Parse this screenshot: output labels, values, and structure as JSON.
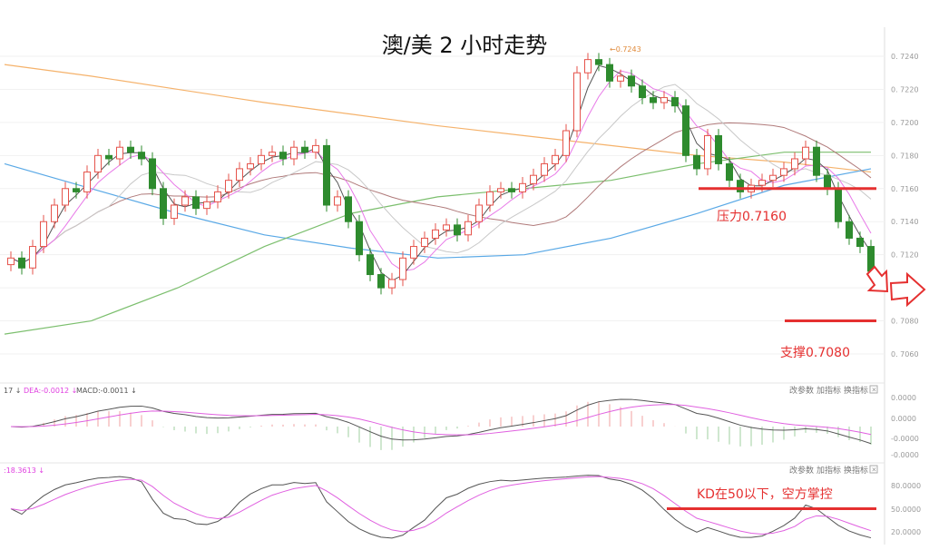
{
  "title": "澳/美 2 小时走势",
  "chart_data": {
    "type": "candlestick",
    "title": "澳/美 2 小时走势",
    "price_axis": {
      "ticks": [
        "0.7240",
        "0.7220",
        "0.7200",
        "0.7180",
        "0.7160",
        "0.7140",
        "0.7120",
        "0.7100",
        "0.7080",
        "0.7060"
      ],
      "range": [
        0.706,
        0.724
      ]
    },
    "high_label": "0.7243",
    "closes": [
      0.7118,
      0.7112,
      0.7125,
      0.714,
      0.715,
      0.716,
      0.7158,
      0.717,
      0.718,
      0.7178,
      0.7185,
      0.7182,
      0.7178,
      0.716,
      0.7142,
      0.715,
      0.7155,
      0.7148,
      0.7152,
      0.7158,
      0.7165,
      0.7172,
      0.7175,
      0.718,
      0.7182,
      0.7178,
      0.7185,
      0.7182,
      0.7186,
      0.715,
      0.7155,
      0.714,
      0.712,
      0.7108,
      0.71,
      0.7105,
      0.7118,
      0.7125,
      0.713,
      0.7135,
      0.7138,
      0.7132,
      0.714,
      0.715,
      0.7158,
      0.716,
      0.7158,
      0.7163,
      0.7168,
      0.7175,
      0.718,
      0.7195,
      0.723,
      0.7238,
      0.7235,
      0.7225,
      0.7228,
      0.7222,
      0.7215,
      0.7212,
      0.7215,
      0.721,
      0.718,
      0.7172,
      0.7192,
      0.7175,
      0.7165,
      0.7158,
      0.7162,
      0.7165,
      0.7168,
      0.7172,
      0.7178,
      0.7185,
      0.7168,
      0.716,
      0.714,
      0.713,
      0.7125,
      0.711
    ],
    "long_mas": [
      {
        "color": "#f5b26b",
        "values": [
          0.7235,
          0.7228,
          0.722,
          0.7212,
          0.7205,
          0.7198,
          0.7192,
          0.7186,
          0.718,
          0.7176,
          0.717
        ]
      },
      {
        "color": "#5aa9e6",
        "values": [
          0.7175,
          0.716,
          0.7145,
          0.7132,
          0.7124,
          0.7118,
          0.712,
          0.713,
          0.7145,
          0.7162,
          0.7172
        ]
      },
      {
        "color": "#7cbf6e",
        "values": [
          0.7072,
          0.708,
          0.71,
          0.7125,
          0.7145,
          0.7155,
          0.716,
          0.7165,
          0.7175,
          0.7182,
          0.7182
        ]
      }
    ],
    "annotations": [
      {
        "label": "压力0.7160",
        "value": 0.716,
        "color": "#e53030"
      },
      {
        "label": "支撑0.7080",
        "value": 0.708,
        "color": "#e53030"
      }
    ],
    "macd": {
      "header": [
        "17",
        "DEA:-0.0012",
        "MACD:-0.0011"
      ],
      "ticks": [
        "0.0000",
        "0.0000",
        "-0.0000",
        "-0.0000"
      ]
    },
    "kd": {
      "header": ":18.3613",
      "ticks": [
        "80.0000",
        "50.0000",
        "20.0000"
      ],
      "annotation": "KD在50以下，空方掌控",
      "level": 50
    }
  },
  "toolbar": [
    "改参数",
    "加指标",
    "换指标"
  ],
  "colors": {
    "up": "#e5534b",
    "down": "#2e8b2e",
    "annot": "#e53030"
  }
}
